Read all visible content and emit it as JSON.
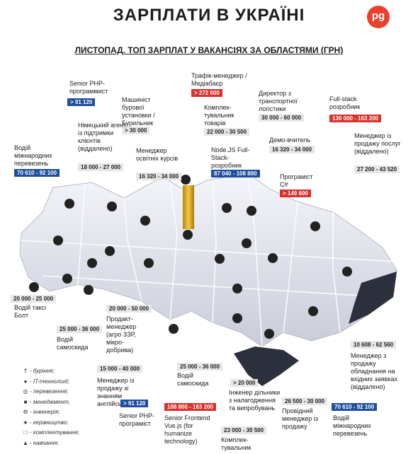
{
  "header": {
    "title": "ЗАРПЛАТИ В УКРАЇНІ",
    "logo": "pg",
    "subtitle": "ЛИСТОПАД. ТОП ЗАРПЛАТ У ВАКАНСІЯХ ЗА ОБЛАСТЯМИ (ГРН)"
  },
  "labels": [
    {
      "title": "Senior PHP-программист",
      "salary": "> 91 120",
      "color": "#1f4e9c"
    },
    {
      "title": "Машиніст бурової установки / Бурильник",
      "salary": "> 30 000",
      "color": "#e6e6e6"
    },
    {
      "title": "Трафік-менеджер / Медіабаєр",
      "salary": "> 272 000",
      "color": "#d9302c"
    },
    {
      "title": "Комплек-тувальник товарів",
      "salary": "22 000 - 30 500",
      "color": "#e6e6e6"
    },
    {
      "title": "Директор з транспортної логістики",
      "salary": "30 000 - 60 000",
      "color": "#e6e6e6"
    },
    {
      "title": "Full-stack розробник",
      "salary": "130 000 - 163 200",
      "color": "#d9302c"
    },
    {
      "title": "Німецький агент із підтримки клієнтів (віддалено)",
      "salary": "18 000 - 27 000",
      "color": "#e6e6e6"
    },
    {
      "title": "Водій міжнародних перевезень",
      "salary": "70 610 - 92 100",
      "color": "#1f4e9c"
    },
    {
      "title": "Менеджер освітніх курсів",
      "salary": "16 320 - 34 000",
      "color": "#e6e6e6"
    },
    {
      "title": "Node.JS Full-Stack-розробник",
      "salary": "87 040 - 108 800",
      "color": "#1f4e9c"
    },
    {
      "title": "Демо-вчитель",
      "salary": "16 320 - 34 000",
      "color": "#e6e6e6"
    },
    {
      "title": "Програміст C#",
      "salary": "> 149 600",
      "color": "#d9302c"
    },
    {
      "title": "Менеджер із продажу послуг (віддалено)",
      "salary": "27 200 - 43 520",
      "color": "#e6e6e6"
    },
    {
      "title": "Водій таксі Болт",
      "salary": "20 000 - 25 000",
      "color": "#e6e6e6"
    },
    {
      "title": "Водій самоскида",
      "salary": "25 000 - 36 000",
      "color": "#e6e6e6"
    },
    {
      "title": "Продакт-менеджер (агро ЗЗР, мікро-добрива)",
      "salary": "20 000 - 50 000",
      "color": "#e6e6e6"
    },
    {
      "title": "Менеджер із продажу зі знанням англійської мови",
      "salary": "15 000 - 40 000",
      "color": "#e6e6e6"
    },
    {
      "title": "Senior PHP-програміст",
      "salary": "> 91 120",
      "color": "#1f4e9c"
    },
    {
      "title": "Senior Frontend Vue.js (for humanize technology)",
      "salary": "108 800 - 163 200",
      "color": "#d9302c"
    },
    {
      "title": "Водій самоскида",
      "salary": "25 000 - 36 000",
      "color": "#e6e6e6"
    },
    {
      "title": "Інженер дільники з налагодження та випробувань",
      "salary": "> 20 000",
      "color": "#e6e6e6"
    },
    {
      "title": "Комплек-тувальник",
      "salary": "23 000 - 30 500",
      "color": "#e6e6e6"
    },
    {
      "title": "Провідний менеджер із продажу",
      "salary": "26 500 - 30 000",
      "color": "#e6e6e6"
    },
    {
      "title": "Водій міжнародних перевезень",
      "salary": "70 610 - 92 100",
      "color": "#1f4e9c"
    },
    {
      "title": "Менеджер з продажу обладнання на вхідних заявках (віддалено)",
      "salary": "10 608 - 62 560",
      "color": "#e6e6e6"
    }
  ],
  "legend": [
    "- буріння;",
    "- IT-технології;",
    "- перевезення;",
    "- менеджмент;",
    "- інженерія;",
    "- керівництво;",
    "- комплектування;",
    "- навчання."
  ]
}
